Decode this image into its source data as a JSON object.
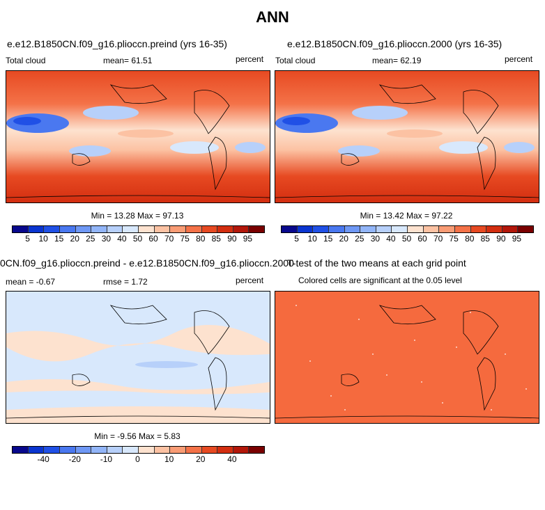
{
  "figure": {
    "title": "ANN"
  },
  "panels": {
    "p1": {
      "title": "e.e12.B1850CN.f09_g16.plioccn.preind (yrs 16-35)",
      "left_label": "Total cloud",
      "mean_label": "mean=   61.51",
      "units": "percent",
      "stats": "Min =   13.28 Max =   97.13"
    },
    "p2": {
      "title": "e.e12.B1850CN.f09_g16.plioccn.2000 (yrs 16-35)",
      "left_label": "Total cloud",
      "mean_label": "mean=   62.19",
      "units": "percent",
      "stats": "Min =   13.42 Max =   97.22"
    },
    "p3": {
      "title": "0CN.f09_g16.plioccn.preind - e.e12.B1850CN.f09_g16.plioccn.2000",
      "left_label": "mean =  -0.67",
      "mean_label": "rmse =    1.72",
      "units": "percent",
      "stats": "Min =   -9.56 Max =    5.83"
    },
    "p4": {
      "title": "T-test of the two means at each grid point",
      "subtitle": "Colored cells are significant at the 0.05 level"
    }
  },
  "colorbars": {
    "abs": {
      "ticks": [
        "5",
        "10",
        "15",
        "20",
        "25",
        "30",
        "40",
        "50",
        "60",
        "70",
        "75",
        "80",
        "85",
        "90",
        "95"
      ],
      "colors": [
        "#08088c",
        "#0a35d0",
        "#2050e6",
        "#4a78f0",
        "#6f98f5",
        "#92b5f8",
        "#b7d0fa",
        "#d8e8fc",
        "#fde2cf",
        "#fcc2a3",
        "#f99c75",
        "#f47248",
        "#e74a22",
        "#d32e10",
        "#b3170a",
        "#7a0000"
      ]
    },
    "diff": {
      "ticks": [
        "-40",
        "-20",
        "-10",
        "0",
        "10",
        "20",
        "40"
      ],
      "colors": [
        "#08088c",
        "#0a35d0",
        "#2050e6",
        "#4a78f0",
        "#6f98f5",
        "#92b5f8",
        "#b7d0fa",
        "#d8e8fc",
        "#fde2cf",
        "#fcc2a3",
        "#f99c75",
        "#f47248",
        "#e74a22",
        "#d32e10",
        "#b3170a",
        "#7a0000"
      ]
    }
  }
}
